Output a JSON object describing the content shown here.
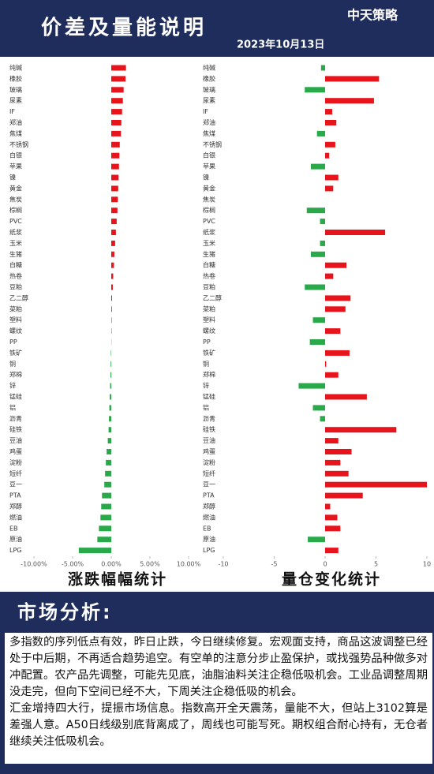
{
  "header": {
    "title": "价差及量能说明",
    "date": "2023年10月13日",
    "logo": "中天策略"
  },
  "chart_data": [
    {
      "type": "hbar",
      "title": "涨跌幅幅统计",
      "categories": [
        "纯碱",
        "橡胶",
        "玻璃",
        "尿素",
        "IF",
        "郑油",
        "焦煤",
        "不锈钢",
        "白银",
        "苹果",
        "镍",
        "黄金",
        "焦炭",
        "棕榈",
        "PVC",
        "纸浆",
        "玉米",
        "生猪",
        "白糖",
        "热卷",
        "豆粕",
        "乙二醇",
        "菜粕",
        "塑料",
        "螺纹",
        "PP",
        "铁矿",
        "铜",
        "郑棉",
        "锌",
        "锰硅",
        "铝",
        "沥青",
        "硅铁",
        "豆油",
        "鸡蛋",
        "淀粉",
        "短纤",
        "豆一",
        "PTA",
        "郑醇",
        "燃油",
        "EB",
        "原油",
        "LPG"
      ],
      "values": [
        1.9,
        1.85,
        1.6,
        1.5,
        1.4,
        1.3,
        1.25,
        1.1,
        1.05,
        1.0,
        0.95,
        0.9,
        0.85,
        0.8,
        0.7,
        0.6,
        0.5,
        0.4,
        0.35,
        0.25,
        0.2,
        0.1,
        0.08,
        0.05,
        0.04,
        0.02,
        -0.05,
        -0.08,
        -0.1,
        -0.15,
        -0.2,
        -0.25,
        -0.3,
        -0.35,
        -0.45,
        -0.6,
        -0.7,
        -0.8,
        -0.9,
        -1.2,
        -1.3,
        -1.4,
        -1.6,
        -1.8,
        -4.2
      ],
      "positive_color": "#e8141c",
      "negative_color": "#2aa94a",
      "xlim": [
        -10,
        10
      ],
      "xticks": [
        {
          "value": -10,
          "label": "-10.00%"
        },
        {
          "value": -5,
          "label": "-5.00%"
        },
        {
          "value": 0,
          "label": "0.00%"
        },
        {
          "value": 5,
          "label": "5.00%"
        },
        {
          "value": 10,
          "label": "10.00%"
        }
      ]
    },
    {
      "type": "hbar",
      "title": "量仓变化统计",
      "categories": [
        "纯碱",
        "橡胶",
        "玻璃",
        "尿素",
        "IF",
        "郑油",
        "焦煤",
        "不锈钢",
        "白银",
        "苹果",
        "镍",
        "黄金",
        "焦炭",
        "棕榈",
        "PVC",
        "纸浆",
        "玉米",
        "生猪",
        "白糖",
        "热卷",
        "豆粕",
        "乙二醇",
        "菜粕",
        "塑料",
        "螺纹",
        "PP",
        "铁矿",
        "铜",
        "郑棉",
        "锌",
        "锰硅",
        "铝",
        "沥青",
        "硅铁",
        "豆油",
        "鸡蛋",
        "淀粉",
        "短纤",
        "豆一",
        "PTA",
        "郑醇",
        "燃油",
        "EB",
        "原油",
        "LPG"
      ],
      "values": [
        -0.4,
        5.3,
        -2.0,
        4.8,
        0.7,
        1.1,
        -0.8,
        1.0,
        0.4,
        -1.4,
        1.3,
        0.8,
        0,
        -1.8,
        -0.5,
        5.9,
        -0.5,
        -1.4,
        2.1,
        0.8,
        -2.0,
        2.5,
        2.0,
        -1.2,
        1.5,
        -1.5,
        2.4,
        0.1,
        1.3,
        -2.6,
        4.1,
        -1.2,
        -0.5,
        7.0,
        1.3,
        2.6,
        1.5,
        2.3,
        10.0,
        3.7,
        0.5,
        1.2,
        1.5,
        -1.7,
        1.3
      ],
      "positive_color": "#e8141c",
      "negative_color": "#2aa94a",
      "xlim": [
        -10,
        10
      ],
      "xticks": [
        -10,
        -5,
        0,
        5,
        10
      ]
    }
  ],
  "analysis": {
    "heading": "市场分析:",
    "paragraphs": [
      "多指数的序列低点有效，昨日止跌，今日继续修复。宏观面支持，商品这波调整已经处于中后期，不再适合趋势追空。有空单的注意分步止盈保护，或找强势品种做多对冲配置。农产品先调整，可能先见底，油脂油料关注企稳低吸机会。工业品调整周期没走完，但向下空间已经不大，下周关注企稳低吸的机会。",
      "汇金增持四大行，提振市场信息。指数高开全天震荡，量能不大，但站上3102算是差强人意。A50日线级别底背离成了，周线也可能写死。期权组合耐心持有，无仓者继续关注低吸机会。"
    ]
  }
}
